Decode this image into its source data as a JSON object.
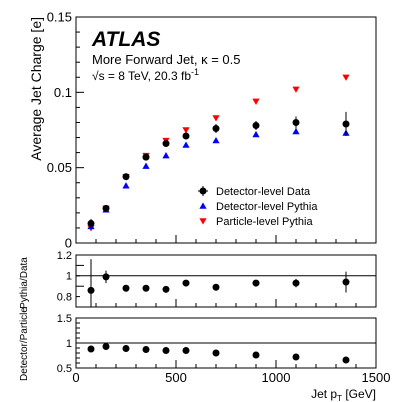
{
  "chart_data": [
    {
      "type": "scatter",
      "panel": "main",
      "ylabel": "Average Jet Charge [e]",
      "ylim": [
        0,
        0.15
      ],
      "xlim": [
        0,
        1500
      ],
      "yticks": [
        "0",
        "0.05",
        "0.1",
        "0.15"
      ],
      "grid": false,
      "legend_position": "right",
      "annotations": {
        "experiment": "ATLAS",
        "line1": "More Forward Jet, κ = 0.5",
        "line2_prefix": "√s = 8 TeV, 20.3 fb",
        "line2_sup": "-1"
      },
      "x": [
        75,
        150,
        250,
        350,
        450,
        550,
        700,
        900,
        1100,
        1350
      ],
      "series": [
        {
          "name": "Detector-level Data",
          "marker": "circle",
          "color": "#000000",
          "values": [
            0.013,
            0.023,
            0.044,
            0.057,
            0.066,
            0.071,
            0.076,
            0.078,
            0.08,
            0.079
          ],
          "errors": [
            0.003,
            0.002,
            0.002,
            0.002,
            0.002,
            0.002,
            0.003,
            0.003,
            0.004,
            0.008
          ]
        },
        {
          "name": "Detector-level Pythia",
          "marker": "triangle-up",
          "color": "#0000ff",
          "values": [
            0.011,
            0.022,
            0.038,
            0.051,
            0.058,
            0.065,
            0.068,
            0.072,
            0.074,
            0.073
          ]
        },
        {
          "name": "Particle-level Pythia",
          "marker": "triangle-down",
          "color": "#ff0000",
          "values": [
            0.01,
            0.023,
            0.044,
            0.058,
            0.068,
            0.075,
            0.083,
            0.094,
            0.102,
            0.11
          ]
        }
      ]
    },
    {
      "type": "scatter",
      "panel": "ratio1",
      "ylabel": "Pythia/Data",
      "ylim": [
        0.7,
        1.2
      ],
      "yticks": [
        "0.8",
        "1",
        "1.2"
      ],
      "reference_line": 1,
      "x": [
        75,
        150,
        250,
        350,
        450,
        550,
        700,
        900,
        1100,
        1350
      ],
      "values": [
        0.86,
        0.99,
        0.88,
        0.88,
        0.87,
        0.93,
        0.89,
        0.93,
        0.93,
        0.94
      ],
      "errors": [
        0.3,
        0.06,
        0.01,
        0.01,
        0.01,
        0.01,
        0.01,
        0.01,
        0.04,
        0.1
      ]
    },
    {
      "type": "scatter",
      "panel": "ratio2",
      "ylabel": "Detector/Particle",
      "ylim": [
        0.5,
        1.5
      ],
      "yticks": [
        "0.5",
        "1",
        "1.5"
      ],
      "xticks": [
        "0",
        "500",
        "1000",
        "1500"
      ],
      "reference_line": 1,
      "xlabel_main": "Jet p",
      "xlabel_sub": "T",
      "xlabel_unit": " [GeV]",
      "x": [
        75,
        150,
        250,
        350,
        450,
        550,
        700,
        900,
        1100,
        1350
      ],
      "values": [
        0.88,
        0.93,
        0.89,
        0.87,
        0.85,
        0.85,
        0.8,
        0.76,
        0.72,
        0.66
      ]
    }
  ]
}
